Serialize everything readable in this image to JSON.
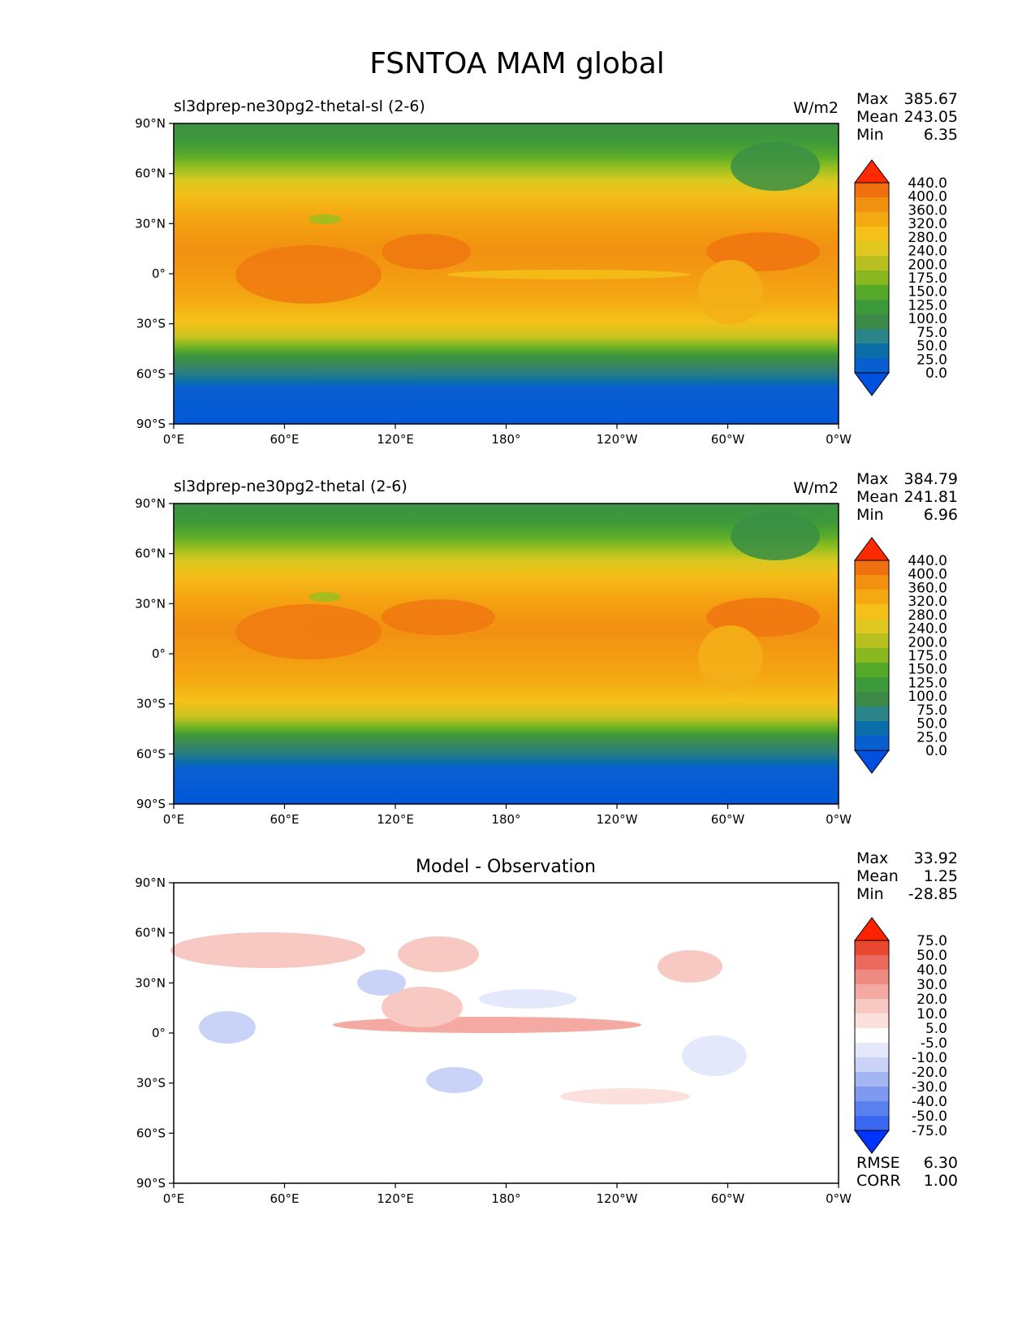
{
  "figure": {
    "title": "FSNTOA MAM global"
  },
  "axes_labels": {
    "lat": [
      "90°N",
      "60°N",
      "30°N",
      "0°",
      "30°S",
      "60°S",
      "90°S"
    ],
    "lon": [
      "0°E",
      "60°E",
      "120°E",
      "180°",
      "120°W",
      "60°W",
      "0°W"
    ]
  },
  "panels": [
    {
      "title_left": "sl3dprep-ne30pg2-thetal-sl (2-6)",
      "title_center": "",
      "units": "W/m2",
      "stats": [
        {
          "label": "Max",
          "value": "385.67"
        },
        {
          "label": "Mean",
          "value": "243.05"
        },
        {
          "label": "Min",
          "value": "6.35"
        }
      ],
      "colorbar_labels": [
        "440.0",
        "400.0",
        "360.0",
        "320.0",
        "280.0",
        "240.0",
        "200.0",
        "175.0",
        "150.0",
        "125.0",
        "100.0",
        "75.0",
        "50.0",
        "25.0",
        "0.0"
      ],
      "metrics": []
    },
    {
      "title_left": "sl3dprep-ne30pg2-thetal (2-6)",
      "title_center": "",
      "units": "W/m2",
      "stats": [
        {
          "label": "Max",
          "value": "384.79"
        },
        {
          "label": "Mean",
          "value": "241.81"
        },
        {
          "label": "Min",
          "value": "6.96"
        }
      ],
      "colorbar_labels": [
        "440.0",
        "400.0",
        "360.0",
        "320.0",
        "280.0",
        "240.0",
        "200.0",
        "175.0",
        "150.0",
        "125.0",
        "100.0",
        "75.0",
        "50.0",
        "25.0",
        "0.0"
      ],
      "metrics": []
    },
    {
      "title_left": "",
      "title_center": "Model - Observation",
      "units": "",
      "stats": [
        {
          "label": "Max",
          "value": "33.92"
        },
        {
          "label": "Mean",
          "value": "1.25"
        },
        {
          "label": "Min",
          "value": "-28.85"
        }
      ],
      "colorbar_labels": [
        "75.0",
        "50.0",
        "40.0",
        "30.0",
        "20.0",
        "10.0",
        "5.0",
        "-5.0",
        "-10.0",
        "-20.0",
        "-30.0",
        "-40.0",
        "-50.0",
        "-75.0"
      ],
      "metrics": [
        {
          "label": "RMSE",
          "value": "6.30"
        },
        {
          "label": "CORR",
          "value": "1.00"
        }
      ]
    }
  ],
  "colors": {
    "field_scale": [
      "#0050e0",
      "#0a5fd0",
      "#0a6fa8",
      "#2a8488",
      "#3d8a48",
      "#3d9a3a",
      "#55a828",
      "#8ab820",
      "#b8c020",
      "#e0c820",
      "#f5c018",
      "#f4a811",
      "#f29010",
      "#f07010",
      "#ff2a00"
    ],
    "diff_scale": [
      "#0033ff",
      "#3a66f0",
      "#5a80ee",
      "#7d9af0",
      "#a3b6f3",
      "#c8d3f7",
      "#e3e8fb",
      "#ffffff",
      "#fbe0dd",
      "#f8c8c2",
      "#f4aaa2",
      "#ef8a80",
      "#eb6a5e",
      "#e8482f",
      "#ff2200"
    ]
  }
}
